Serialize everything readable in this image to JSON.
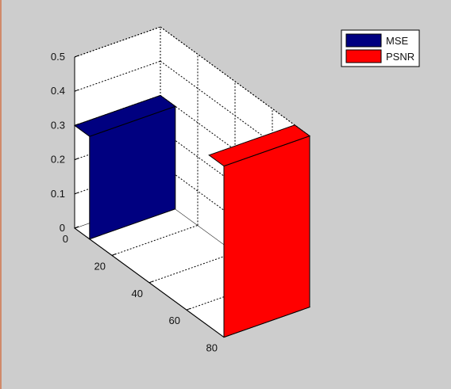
{
  "chart_data": {
    "type": "bar3",
    "view": "3d",
    "grid": true,
    "legend_position": "top-right",
    "title": "",
    "xlabel": "",
    "ylabel": "",
    "zlabel": "",
    "y_ticks": [
      "0",
      "20",
      "40",
      "60",
      "80"
    ],
    "z_ticks": [
      "0",
      "0.1",
      "0.2",
      "0.3",
      "0.4",
      "0.5"
    ],
    "ylim": [
      0,
      80
    ],
    "zlim": [
      0,
      0.5
    ],
    "series": [
      {
        "name": "MSE",
        "color": "#000080",
        "y_position": 0,
        "value": 0.3
      },
      {
        "name": "PSNR",
        "color": "#ff0000",
        "y_position": 80,
        "value": 0.5
      }
    ]
  }
}
